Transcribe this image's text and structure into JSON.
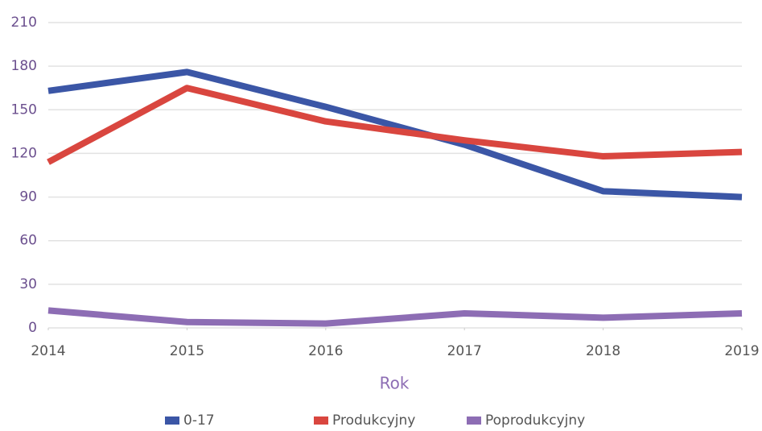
{
  "chart_data": {
    "type": "line",
    "x_label": "Rok",
    "x": [
      2014,
      2015,
      2016,
      2017,
      2018,
      2019
    ],
    "xlim": [
      2014,
      2019
    ],
    "xticks": [
      2014,
      2015,
      2016,
      2017,
      2018,
      2019
    ],
    "ylim": [
      0,
      210
    ],
    "yticks": [
      0,
      30,
      60,
      90,
      120,
      150,
      180,
      210
    ],
    "grid": true,
    "legend": "bottom",
    "series": [
      {
        "name": "0-17",
        "color": "#3b56a6",
        "values": [
          163,
          176,
          152,
          126,
          94,
          90
        ]
      },
      {
        "name": "Produkcyjny",
        "color": "#d9463f",
        "values": [
          114,
          165,
          142,
          129,
          118,
          121
        ]
      },
      {
        "name": "Poprodukcyjny",
        "color": "#8d6db4",
        "values": [
          12,
          4,
          3,
          10,
          7,
          10
        ]
      }
    ]
  }
}
